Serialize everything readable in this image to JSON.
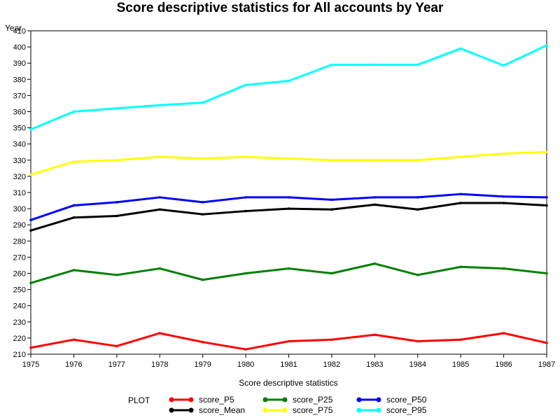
{
  "chart_data": {
    "type": "line",
    "title": "Score descriptive statistics for All accounts by Year",
    "ylabel": "Year",
    "xlabel": "Score descriptive statistics",
    "x": [
      1975,
      1976,
      1977,
      1978,
      1979,
      1980,
      1981,
      1982,
      1983,
      1984,
      1985,
      1986,
      1987
    ],
    "xlim": [
      1975,
      1987
    ],
    "ylim": [
      210,
      410
    ],
    "yticks": [
      210,
      220,
      230,
      240,
      250,
      260,
      270,
      280,
      290,
      300,
      310,
      320,
      330,
      340,
      350,
      360,
      370,
      380,
      390,
      400,
      410
    ],
    "grid": false,
    "legend": {
      "title": "PLOT",
      "placement": "bottom"
    },
    "series": [
      {
        "name": "score_P5",
        "color": "#ff0000",
        "values": [
          214,
          219,
          215,
          223,
          217.5,
          213,
          218,
          219,
          222,
          218,
          219,
          223,
          217
        ]
      },
      {
        "name": "score_Mean",
        "color": "#000000",
        "values": [
          286.5,
          294.5,
          295.5,
          299.5,
          296.5,
          298.5,
          300,
          299.5,
          302.5,
          299.5,
          303.5,
          303.5,
          302
        ]
      },
      {
        "name": "score_P25",
        "color": "#008000",
        "values": [
          254,
          262,
          259,
          263,
          256,
          260,
          263,
          260,
          266,
          259,
          264,
          263,
          260
        ]
      },
      {
        "name": "score_P75",
        "color": "#ffff00",
        "values": [
          321,
          329,
          330,
          332,
          331,
          332,
          331,
          330,
          330,
          330,
          332,
          334,
          335
        ]
      },
      {
        "name": "score_P50",
        "color": "#0000ff",
        "values": [
          293,
          302,
          304,
          307,
          304,
          307,
          307,
          305.5,
          307,
          307,
          309,
          307.5,
          307
        ]
      },
      {
        "name": "score_P95",
        "color": "#00ffff",
        "values": [
          349,
          360,
          362,
          364,
          365.5,
          376.5,
          379,
          389,
          389,
          389,
          399,
          388.5,
          401
        ]
      }
    ]
  }
}
